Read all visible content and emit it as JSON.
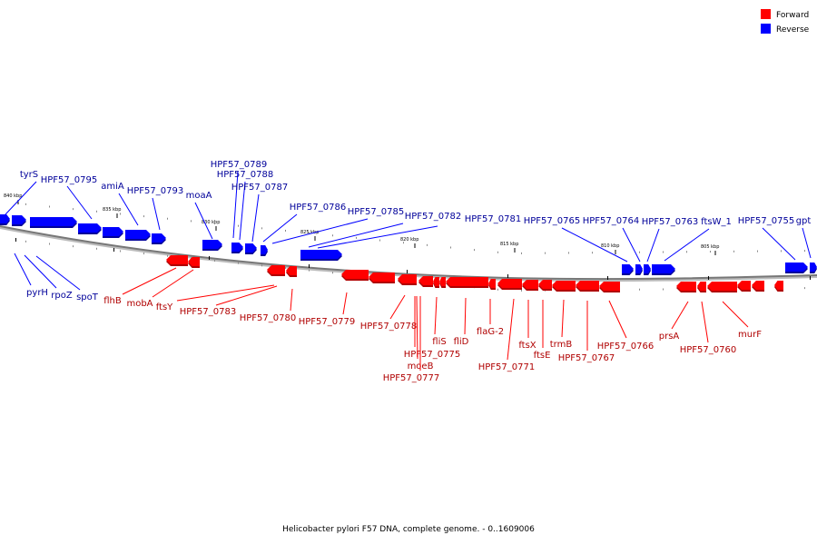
{
  "colors": {
    "forward": "#ff0000",
    "forward_dark": "#b00000",
    "reverse": "#0000ff",
    "reverse_dark": "#00009a",
    "backbone": "#777777"
  },
  "legend": [
    {
      "label": "Forward",
      "strand": "forward"
    },
    {
      "label": "Reverse",
      "strand": "reverse"
    }
  ],
  "ticks": [
    "840 kbp",
    "835 kbp",
    "830 kbp",
    "825 kbp",
    "820 kbp",
    "815 kbp",
    "810 kbp",
    "805 kbp"
  ],
  "reverse_genes_above": [
    "tyrS",
    "HPF57_0795",
    "amiA",
    "HPF57_0793",
    "moaA",
    "HPF57_0789",
    "HPF57_0788",
    "HPF57_0787",
    "HPF57_0786",
    "HPF57_0785",
    "HPF57_0782",
    "HPF57_0781",
    "HPF57_0765",
    "HPF57_0764",
    "HPF57_0763",
    "ftsW_1",
    "HPF57_0755",
    "gpt"
  ],
  "reverse_genes_below": [
    "pyrH",
    "rpoZ",
    "spoT"
  ],
  "forward_genes": [
    "flhB",
    "mobA",
    "ftsY",
    "HPF57_0783",
    "HPF57_0780",
    "HPF57_0779",
    "HPF57_0778",
    "HPF57_0775",
    "moeB",
    "HPF57_0777",
    "fliS",
    "fliD",
    "flaG-2",
    "HPF57_0771",
    "ftsX",
    "ftsE",
    "trmB",
    "HPF57_0767",
    "HPF57_0766",
    "prsA",
    "HPF57_0760",
    "murF"
  ],
  "caption": "Helicobacter pylori F57 DNA, complete genome. - 0..1609006"
}
